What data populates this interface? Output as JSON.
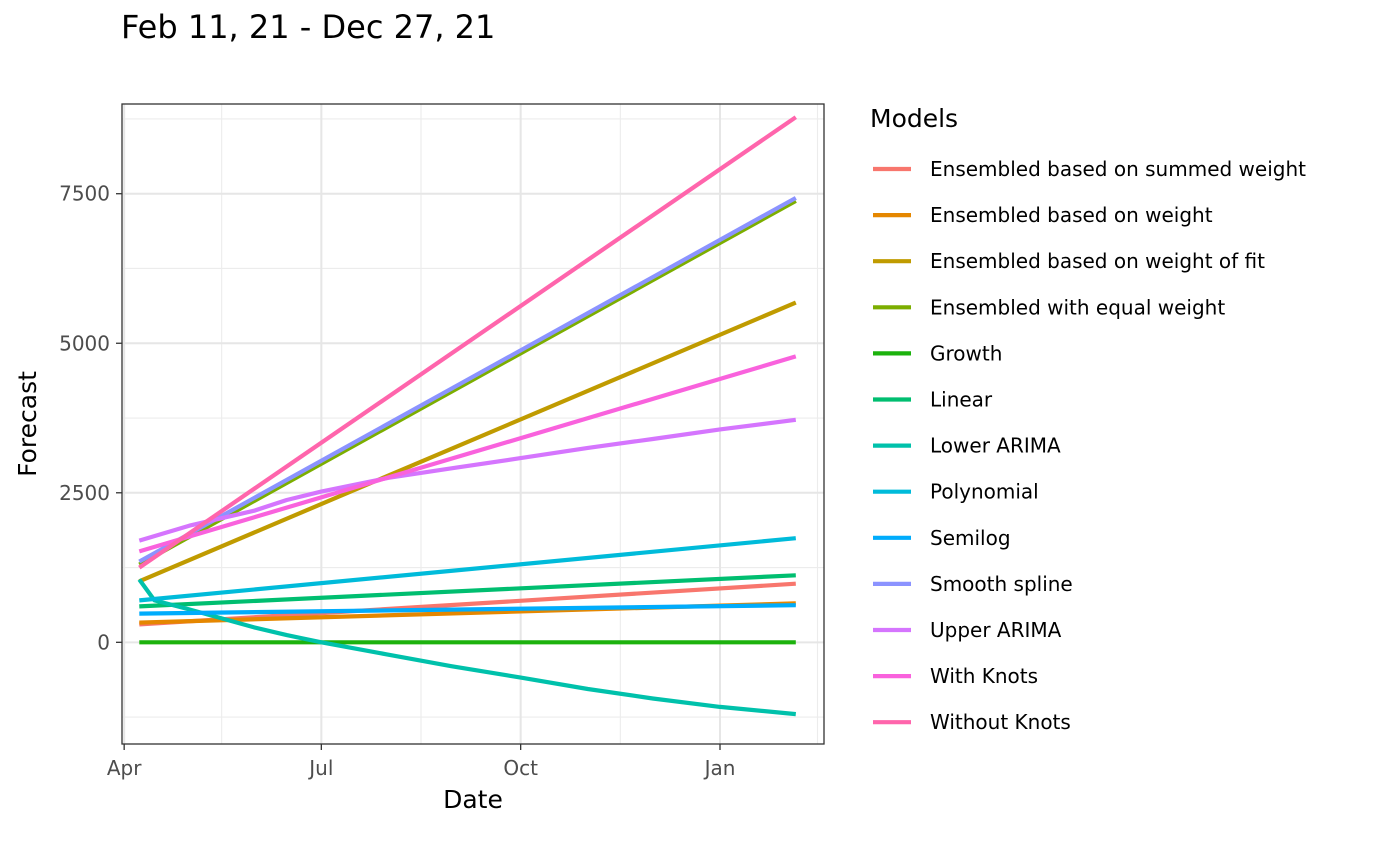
{
  "chart_data": {
    "type": "line",
    "title": "Feb 11, 21 - Dec 27, 21",
    "xlabel": "Date",
    "ylabel": "Forecast",
    "x_ticks": [
      "Apr",
      "Jul",
      "Oct",
      "Jan"
    ],
    "y_ticks": [
      0,
      2500,
      5000,
      7500
    ],
    "ylim": [
      -1700,
      9000
    ],
    "grid": true,
    "legend_title": "Models",
    "legend_position": "right",
    "series": [
      {
        "name": "Ensembled based on summed weight",
        "color": "#F8766D",
        "points": [
          [
            "2021-04-08",
            300
          ],
          [
            "2022-02-05",
            980
          ]
        ]
      },
      {
        "name": "Ensembled based on weight",
        "color": "#E58700",
        "points": [
          [
            "2021-04-08",
            330
          ],
          [
            "2022-02-05",
            650
          ]
        ]
      },
      {
        "name": "Ensembled based on weight of fit",
        "color": "#C09B00",
        "points": [
          [
            "2021-04-08",
            1020
          ],
          [
            "2022-02-05",
            5680
          ]
        ]
      },
      {
        "name": "Ensembled with equal weight",
        "color": "#7CAE00",
        "points": [
          [
            "2021-04-08",
            1300
          ],
          [
            "2022-02-05",
            7380
          ]
        ]
      },
      {
        "name": "Growth",
        "color": "#1CB20D",
        "points": [
          [
            "2021-04-08",
            0
          ],
          [
            "2022-02-05",
            0
          ]
        ]
      },
      {
        "name": "Linear",
        "color": "#00BE70",
        "points": [
          [
            "2021-04-08",
            600
          ],
          [
            "2022-02-05",
            1120
          ]
        ]
      },
      {
        "name": "Lower ARIMA",
        "color": "#00C1AB",
        "points": [
          [
            "2021-04-08",
            1050
          ],
          [
            "2021-04-15",
            700
          ],
          [
            "2021-05-01",
            550
          ],
          [
            "2021-05-16",
            400
          ],
          [
            "2021-05-31",
            250
          ],
          [
            "2021-06-15",
            120
          ],
          [
            "2021-07-01",
            0
          ],
          [
            "2021-07-31",
            -200
          ],
          [
            "2021-08-30",
            -400
          ],
          [
            "2021-10-01",
            -590
          ],
          [
            "2021-11-01",
            -780
          ],
          [
            "2021-12-01",
            -940
          ],
          [
            "2022-01-01",
            -1080
          ],
          [
            "2022-02-05",
            -1200
          ]
        ]
      },
      {
        "name": "Polynomial",
        "color": "#00BBDA",
        "points": [
          [
            "2021-04-08",
            700
          ],
          [
            "2022-02-05",
            1740
          ]
        ]
      },
      {
        "name": "Semilog",
        "color": "#00ACFC",
        "points": [
          [
            "2021-04-08",
            480
          ],
          [
            "2022-02-05",
            620
          ]
        ]
      },
      {
        "name": "Smooth spline",
        "color": "#8B93FF",
        "points": [
          [
            "2021-04-08",
            1350
          ],
          [
            "2022-02-05",
            7430
          ]
        ]
      },
      {
        "name": "Upper ARIMA",
        "color": "#D575FE",
        "points": [
          [
            "2021-04-08",
            1700
          ],
          [
            "2021-05-01",
            1950
          ],
          [
            "2021-05-31",
            2200
          ],
          [
            "2021-06-15",
            2380
          ],
          [
            "2021-07-01",
            2520
          ],
          [
            "2021-08-01",
            2750
          ],
          [
            "2021-09-01",
            2920
          ],
          [
            "2021-10-01",
            3080
          ],
          [
            "2021-11-01",
            3250
          ],
          [
            "2021-12-01",
            3400
          ],
          [
            "2022-01-01",
            3560
          ],
          [
            "2022-02-05",
            3720
          ]
        ]
      },
      {
        "name": "With Knots",
        "color": "#F962DD",
        "points": [
          [
            "2021-04-08",
            1520
          ],
          [
            "2022-02-05",
            4780
          ]
        ]
      },
      {
        "name": "Without Knots",
        "color": "#FF65AC",
        "points": [
          [
            "2021-04-08",
            1250
          ],
          [
            "2022-02-05",
            8780
          ]
        ]
      }
    ]
  }
}
